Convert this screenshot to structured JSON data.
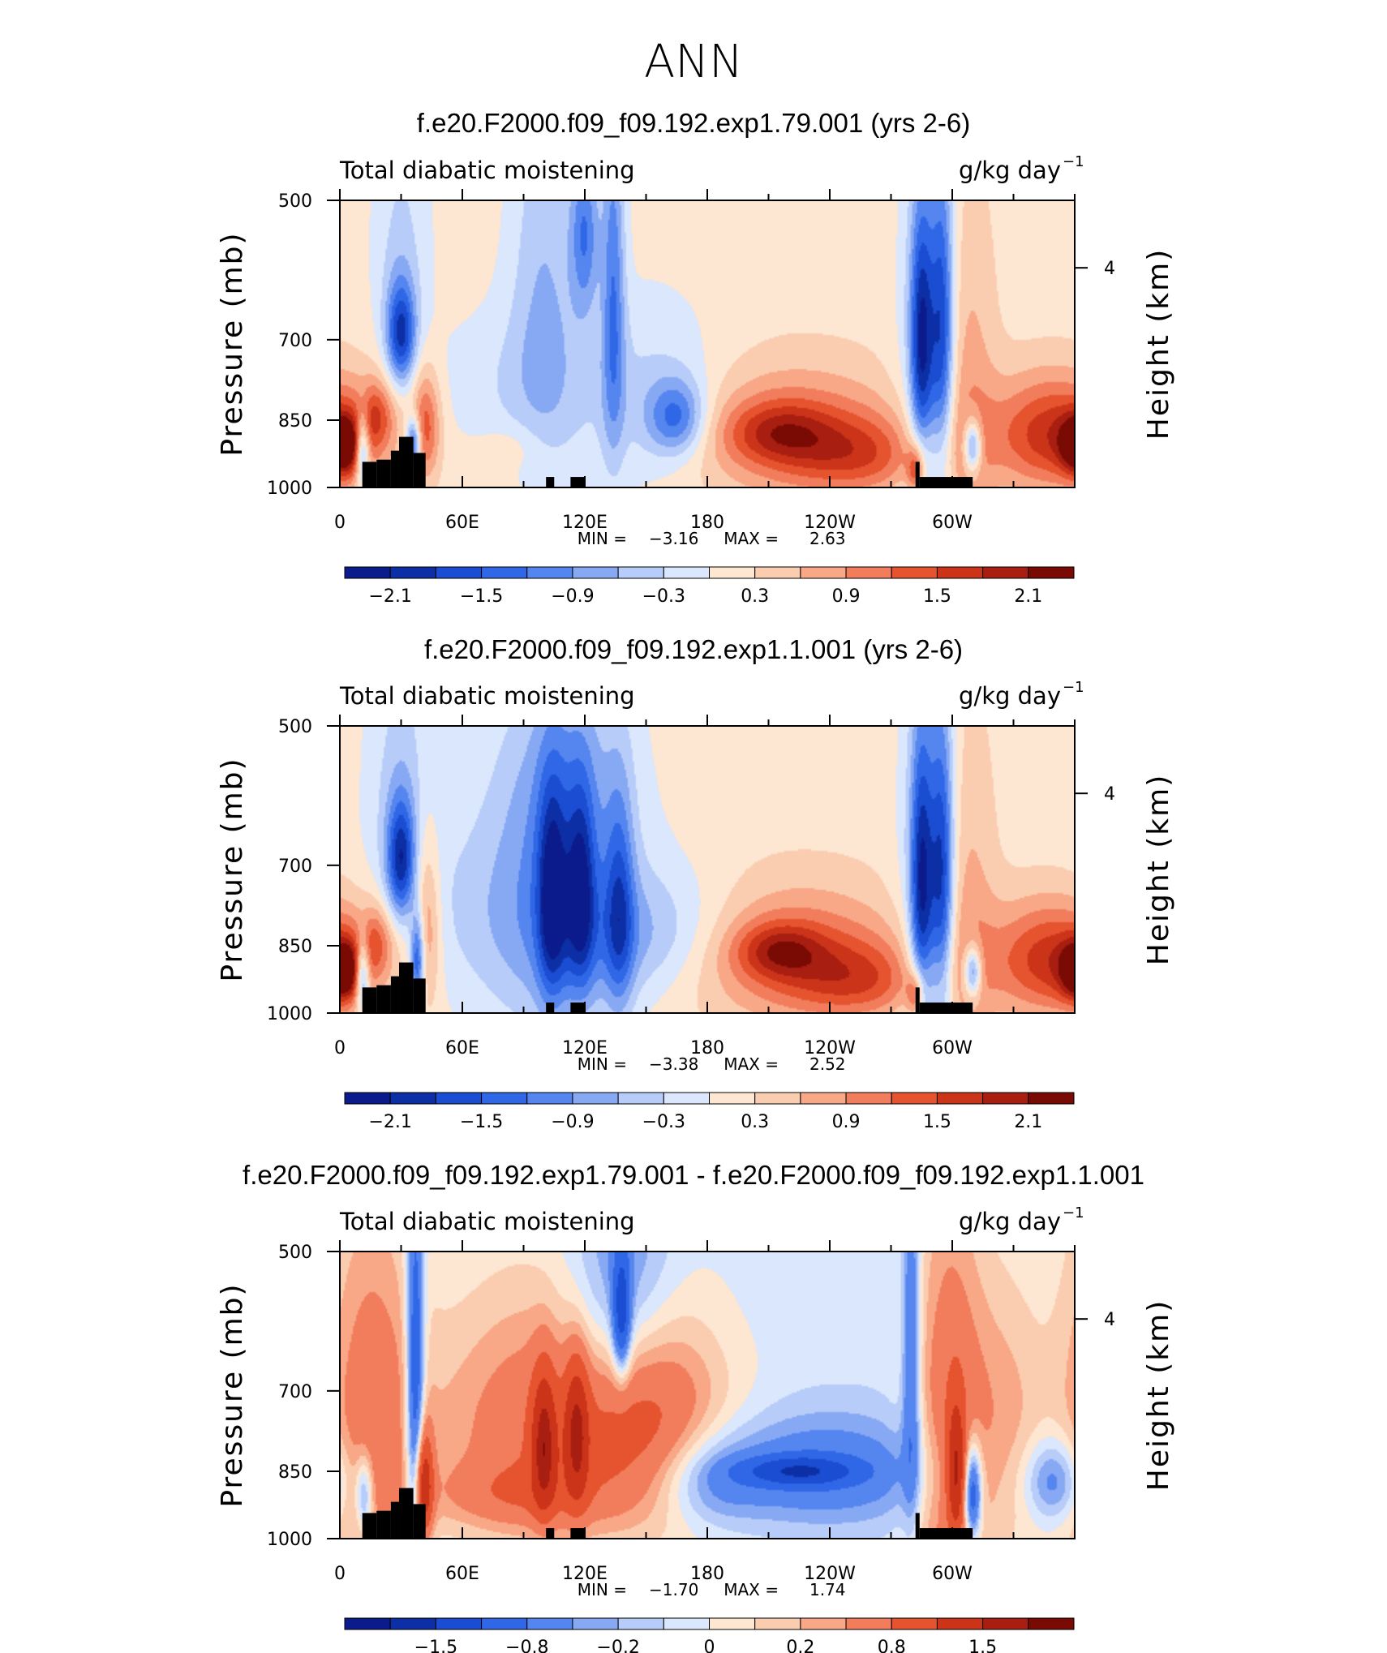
{
  "figure_title": "ANN",
  "colors": {
    "neg": [
      "#0b1b8c",
      "#0d2fa6",
      "#1a4dd1",
      "#2f67e6",
      "#5585ef",
      "#87a9f4",
      "#b7ccf8",
      "#dbe7fc"
    ],
    "pos": [
      "#fde6d2",
      "#fbcdb0",
      "#f8a887",
      "#f27d5c",
      "#e6532f",
      "#cc3419",
      "#a81e10",
      "#7a0a04"
    ],
    "land": "#000000"
  },
  "chart_data": [
    {
      "type": "heatmap",
      "title": "f.e20.F2000.f09_f09.192.exp1.79.001 (yrs 2-6)",
      "left_label": "Total diabatic moistening",
      "units_label": "g/kg day",
      "units_exp": "−1",
      "ylabel": "Pressure (mb)",
      "ylabel_right": "Height (km)",
      "x_ticks": [
        "0",
        "60E",
        "120E",
        "180",
        "120W",
        "60W"
      ],
      "y_ticks": [
        "500",
        "700",
        "850",
        "1000"
      ],
      "y_ticks_right": [
        "4"
      ],
      "xlim": [
        0,
        360
      ],
      "ylim": [
        1000,
        500
      ],
      "min_label": "MIN =",
      "min_value": "−3.16",
      "max_label": "MAX =",
      "max_value": "2.63",
      "colorbar_labels": [
        "−2.1",
        "−1.5",
        "−0.9",
        "−0.3",
        "0.3",
        "0.9",
        "1.5",
        "2.1"
      ],
      "colorbar_levels": [
        -2.1,
        -1.8,
        -1.5,
        -1.2,
        -0.9,
        -0.6,
        -0.3,
        0,
        0.3,
        0.6,
        0.9,
        1.2,
        1.5,
        1.8,
        2.1
      ],
      "background": 0.15,
      "features": [
        {
          "lon": 30,
          "p": 690,
          "w": 5,
          "h": 60,
          "a": -1.8
        },
        {
          "lon": 18,
          "p": 840,
          "w": 6,
          "h": 50,
          "a": 0.9
        },
        {
          "lon": 42,
          "p": 860,
          "w": 5,
          "h": 80,
          "a": 1.2
        },
        {
          "lon": 2,
          "p": 905,
          "w": 6,
          "h": 45,
          "a": 1.8
        },
        {
          "lon": 11,
          "p": 910,
          "w": 2.5,
          "h": 55,
          "a": -1.9
        },
        {
          "lon": 36,
          "p": 900,
          "w": 2.5,
          "h": 40,
          "a": -1.9
        },
        {
          "lon": 30,
          "p": 560,
          "w": 10,
          "h": 140,
          "a": -0.5
        },
        {
          "lon": 100,
          "p": 620,
          "w": 12,
          "h": 220,
          "a": -0.7
        },
        {
          "lon": 134,
          "p": 620,
          "w": 4,
          "h": 200,
          "a": -1.2
        },
        {
          "lon": 120,
          "p": 540,
          "w": 5,
          "h": 80,
          "a": -1.2
        },
        {
          "lon": 150,
          "p": 820,
          "w": 28,
          "h": 130,
          "a": -0.6
        },
        {
          "lon": 165,
          "p": 845,
          "w": 10,
          "h": 55,
          "a": -1.3
        },
        {
          "lon": 80,
          "p": 780,
          "w": 25,
          "h": 100,
          "a": -0.35
        },
        {
          "lon": 220,
          "p": 880,
          "w": 40,
          "h": 100,
          "a": 1.0
        },
        {
          "lon": 215,
          "p": 875,
          "w": 18,
          "h": 45,
          "a": 0.9
        },
        {
          "lon": 255,
          "p": 925,
          "w": 25,
          "h": 60,
          "a": 0.9
        },
        {
          "lon": 285,
          "p": 700,
          "w": 4,
          "h": 150,
          "a": -1.9
        },
        {
          "lon": 295,
          "p": 680,
          "w": 4,
          "h": 170,
          "a": -1.6
        },
        {
          "lon": 290,
          "p": 820,
          "w": 11,
          "h": 320,
          "a": -0.7
        },
        {
          "lon": 306,
          "p": 820,
          "w": 10,
          "h": 250,
          "a": 0.75
        },
        {
          "lon": 350,
          "p": 880,
          "w": 22,
          "h": 85,
          "a": 1.6
        },
        {
          "lon": 282,
          "p": 960,
          "w": 3,
          "h": 40,
          "a": 1.3
        },
        {
          "lon": 310,
          "p": 905,
          "w": 3,
          "h": 40,
          "a": -1.7
        },
        {
          "lon": 85,
          "p": 905,
          "w": 10,
          "h": 35,
          "a": 0.25
        }
      ],
      "land": [
        {
          "lon1": 11,
          "lon2": 18,
          "p1": 940,
          "p2": 1000
        },
        {
          "lon1": 18,
          "lon2": 25,
          "p1": 935,
          "p2": 1000
        },
        {
          "lon1": 25,
          "lon2": 29,
          "p1": 915,
          "p2": 1000
        },
        {
          "lon1": 29,
          "lon2": 36,
          "p1": 885,
          "p2": 1000
        },
        {
          "lon1": 36,
          "lon2": 42,
          "p1": 920,
          "p2": 1000
        },
        {
          "lon1": 101,
          "lon2": 105,
          "p1": 975,
          "p2": 1000
        },
        {
          "lon1": 113,
          "lon2": 120,
          "p1": 975,
          "p2": 1000
        },
        {
          "lon1": 282,
          "lon2": 284,
          "p1": 940,
          "p2": 1000
        },
        {
          "lon1": 284,
          "lon2": 310,
          "p1": 975,
          "p2": 1000
        }
      ]
    },
    {
      "type": "heatmap",
      "title": "f.e20.F2000.f09_f09.192.exp1.1.001 (yrs 2-6)",
      "left_label": "Total diabatic moistening",
      "units_label": "g/kg day",
      "units_exp": "−1",
      "ylabel": "Pressure (mb)",
      "ylabel_right": "Height (km)",
      "x_ticks": [
        "0",
        "60E",
        "120E",
        "180",
        "120W",
        "60W"
      ],
      "y_ticks": [
        "500",
        "700",
        "850",
        "1000"
      ],
      "y_ticks_right": [
        "4"
      ],
      "xlim": [
        0,
        360
      ],
      "ylim": [
        1000,
        500
      ],
      "min_label": "MIN =",
      "min_value": "−3.38",
      "max_label": "MAX =",
      "max_value": "2.52",
      "colorbar_labels": [
        "−2.1",
        "−1.5",
        "−0.9",
        "−0.3",
        "0.3",
        "0.9",
        "1.5",
        "2.1"
      ],
      "colorbar_levels": [
        -2.1,
        -1.8,
        -1.5,
        -1.2,
        -0.9,
        -0.6,
        -0.3,
        0,
        0.3,
        0.6,
        0.9,
        1.2,
        1.5,
        1.8,
        2.1
      ],
      "background": 0.15,
      "features": [
        {
          "lon": 30,
          "p": 690,
          "w": 5,
          "h": 70,
          "a": -1.8
        },
        {
          "lon": 18,
          "p": 840,
          "w": 6,
          "h": 50,
          "a": 0.8
        },
        {
          "lon": 42,
          "p": 800,
          "w": 5,
          "h": 120,
          "a": 1.0
        },
        {
          "lon": 2,
          "p": 905,
          "w": 6,
          "h": 45,
          "a": 1.8
        },
        {
          "lon": 11,
          "p": 910,
          "w": 2.5,
          "h": 55,
          "a": -1.9
        },
        {
          "lon": 38,
          "p": 880,
          "w": 2.5,
          "h": 70,
          "a": -1.9
        },
        {
          "lon": 30,
          "p": 560,
          "w": 12,
          "h": 160,
          "a": -0.5
        },
        {
          "lon": 108,
          "p": 760,
          "w": 25,
          "h": 220,
          "a": -0.9
        },
        {
          "lon": 104,
          "p": 760,
          "w": 5,
          "h": 140,
          "a": -1.6
        },
        {
          "lon": 118,
          "p": 750,
          "w": 5,
          "h": 130,
          "a": -1.5
        },
        {
          "lon": 137,
          "p": 780,
          "w": 5,
          "h": 150,
          "a": -1.2
        },
        {
          "lon": 155,
          "p": 830,
          "w": 30,
          "h": 90,
          "a": -0.8
        },
        {
          "lon": 70,
          "p": 780,
          "w": 35,
          "h": 140,
          "a": -0.4
        },
        {
          "lon": 110,
          "p": 560,
          "w": 20,
          "h": 100,
          "a": -0.4
        },
        {
          "lon": 220,
          "p": 870,
          "w": 40,
          "h": 100,
          "a": 1.1
        },
        {
          "lon": 215,
          "p": 860,
          "w": 15,
          "h": 40,
          "a": 1.0
        },
        {
          "lon": 255,
          "p": 925,
          "w": 25,
          "h": 60,
          "a": 0.9
        },
        {
          "lon": 285,
          "p": 740,
          "w": 4,
          "h": 180,
          "a": -1.9
        },
        {
          "lon": 295,
          "p": 720,
          "w": 4,
          "h": 180,
          "a": -1.7
        },
        {
          "lon": 290,
          "p": 820,
          "w": 11,
          "h": 320,
          "a": -0.7
        },
        {
          "lon": 306,
          "p": 820,
          "w": 10,
          "h": 250,
          "a": 0.7
        },
        {
          "lon": 350,
          "p": 880,
          "w": 22,
          "h": 85,
          "a": 1.6
        },
        {
          "lon": 282,
          "p": 960,
          "w": 3,
          "h": 40,
          "a": 1.3
        },
        {
          "lon": 310,
          "p": 905,
          "w": 3,
          "h": 40,
          "a": -1.7
        }
      ],
      "land": [
        {
          "lon1": 11,
          "lon2": 18,
          "p1": 940,
          "p2": 1000
        },
        {
          "lon1": 18,
          "lon2": 25,
          "p1": 935,
          "p2": 1000
        },
        {
          "lon1": 25,
          "lon2": 29,
          "p1": 915,
          "p2": 1000
        },
        {
          "lon1": 29,
          "lon2": 36,
          "p1": 885,
          "p2": 1000
        },
        {
          "lon1": 36,
          "lon2": 42,
          "p1": 920,
          "p2": 1000
        },
        {
          "lon1": 101,
          "lon2": 105,
          "p1": 975,
          "p2": 1000
        },
        {
          "lon1": 113,
          "lon2": 120,
          "p1": 975,
          "p2": 1000
        },
        {
          "lon1": 282,
          "lon2": 284,
          "p1": 940,
          "p2": 1000
        },
        {
          "lon1": 284,
          "lon2": 310,
          "p1": 975,
          "p2": 1000
        }
      ]
    },
    {
      "type": "heatmap",
      "title": "f.e20.F2000.f09_f09.192.exp1.79.001 - f.e20.F2000.f09_f09.192.exp1.1.001",
      "left_label": "Total diabatic moistening",
      "units_label": "g/kg day",
      "units_exp": "−1",
      "ylabel": "Pressure (mb)",
      "ylabel_right": "Height (km)",
      "x_ticks": [
        "0",
        "60E",
        "120E",
        "180",
        "120W",
        "60W"
      ],
      "y_ticks": [
        "500",
        "700",
        "850",
        "1000"
      ],
      "y_ticks_right": [
        "4"
      ],
      "xlim": [
        0,
        360
      ],
      "ylim": [
        1000,
        500
      ],
      "min_label": "MIN =",
      "min_value": "−1.70",
      "max_label": "MAX =",
      "max_value": "1.74",
      "colorbar_labels": [
        "−1.5",
        "−0.8",
        "−0.2",
        "0",
        "0.2",
        "0.8",
        "1.5"
      ],
      "colorbar_levels": [
        -1.5,
        -1.2,
        -0.8,
        -0.5,
        -0.3,
        -0.2,
        -0.1,
        0,
        0.1,
        0.2,
        0.3,
        0.5,
        0.8,
        1.2,
        1.5
      ],
      "background": -0.05,
      "features": [
        {
          "lon": 15,
          "p": 760,
          "w": 16,
          "h": 260,
          "a": 0.45
        },
        {
          "lon": 37,
          "p": 700,
          "w": 3,
          "h": 220,
          "a": -0.9
        },
        {
          "lon": 41,
          "p": 880,
          "w": 3,
          "h": 80,
          "a": 1.0
        },
        {
          "lon": 12,
          "p": 900,
          "w": 3,
          "h": 60,
          "a": -0.5
        },
        {
          "lon": 100,
          "p": 770,
          "w": 40,
          "h": 170,
          "a": 0.5
        },
        {
          "lon": 100,
          "p": 800,
          "w": 4,
          "h": 90,
          "a": 1.0
        },
        {
          "lon": 116,
          "p": 780,
          "w": 4,
          "h": 90,
          "a": 0.9
        },
        {
          "lon": 150,
          "p": 700,
          "w": 22,
          "h": 120,
          "a": 0.35
        },
        {
          "lon": 165,
          "p": 830,
          "w": 30,
          "h": 120,
          "a": 0.3
        },
        {
          "lon": 138,
          "p": 560,
          "w": 18,
          "h": 120,
          "a": -0.45
        },
        {
          "lon": 138,
          "p": 580,
          "w": 3,
          "h": 60,
          "a": -0.9
        },
        {
          "lon": 85,
          "p": 900,
          "w": 30,
          "h": 50,
          "a": 0.25
        },
        {
          "lon": 230,
          "p": 850,
          "w": 45,
          "h": 80,
          "a": -0.45
        },
        {
          "lon": 225,
          "p": 850,
          "w": 18,
          "h": 20,
          "a": -0.85
        },
        {
          "lon": 180,
          "p": 870,
          "w": 18,
          "h": 70,
          "a": -0.35
        },
        {
          "lon": 280,
          "p": 650,
          "w": 3,
          "h": 200,
          "a": -0.55
        },
        {
          "lon": 298,
          "p": 800,
          "w": 12,
          "h": 300,
          "a": 0.5
        },
        {
          "lon": 302,
          "p": 850,
          "w": 3,
          "h": 90,
          "a": 0.9
        },
        {
          "lon": 310,
          "p": 900,
          "w": 3,
          "h": 70,
          "a": -0.9
        },
        {
          "lon": 325,
          "p": 770,
          "w": 15,
          "h": 190,
          "a": 0.3
        },
        {
          "lon": 350,
          "p": 870,
          "w": 10,
          "h": 60,
          "a": -0.45
        }
      ],
      "land": [
        {
          "lon1": 11,
          "lon2": 18,
          "p1": 940,
          "p2": 1000
        },
        {
          "lon1": 18,
          "lon2": 25,
          "p1": 935,
          "p2": 1000
        },
        {
          "lon1": 25,
          "lon2": 29,
          "p1": 915,
          "p2": 1000
        },
        {
          "lon1": 29,
          "lon2": 36,
          "p1": 885,
          "p2": 1000
        },
        {
          "lon1": 36,
          "lon2": 42,
          "p1": 920,
          "p2": 1000
        },
        {
          "lon1": 101,
          "lon2": 105,
          "p1": 975,
          "p2": 1000
        },
        {
          "lon1": 113,
          "lon2": 120,
          "p1": 975,
          "p2": 1000
        },
        {
          "lon1": 282,
          "lon2": 284,
          "p1": 940,
          "p2": 1000
        },
        {
          "lon1": 284,
          "lon2": 310,
          "p1": 975,
          "p2": 1000
        }
      ]
    }
  ]
}
